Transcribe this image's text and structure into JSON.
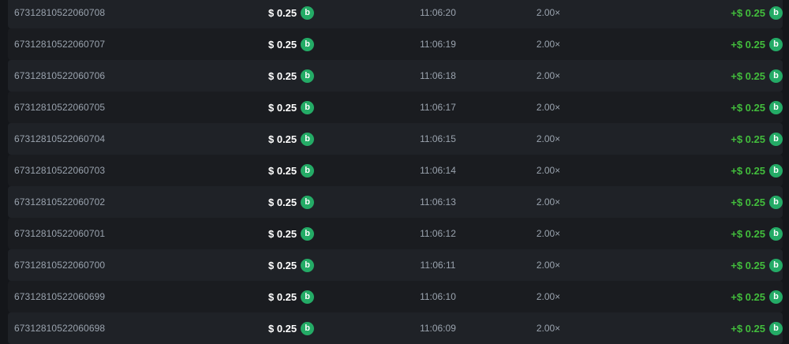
{
  "colors": {
    "page_background": "#14161a",
    "row_light": "#1f2227",
    "row_dark": "#1a1c20",
    "muted_text": "#9aa3ae",
    "amount_text": "#ffffff",
    "payout_green": "#42bd3c",
    "coin_green": "#24ab66"
  },
  "coin": {
    "glyph": "b",
    "name": "bcd-coin"
  },
  "table": {
    "rows": [
      {
        "id": "67312810522060708",
        "amount": "$ 0.25",
        "time": "11:06:20",
        "multiplier": "2.00×",
        "payout": "+$ 0.25"
      },
      {
        "id": "67312810522060707",
        "amount": "$ 0.25",
        "time": "11:06:19",
        "multiplier": "2.00×",
        "payout": "+$ 0.25"
      },
      {
        "id": "67312810522060706",
        "amount": "$ 0.25",
        "time": "11:06:18",
        "multiplier": "2.00×",
        "payout": "+$ 0.25"
      },
      {
        "id": "67312810522060705",
        "amount": "$ 0.25",
        "time": "11:06:17",
        "multiplier": "2.00×",
        "payout": "+$ 0.25"
      },
      {
        "id": "67312810522060704",
        "amount": "$ 0.25",
        "time": "11:06:15",
        "multiplier": "2.00×",
        "payout": "+$ 0.25"
      },
      {
        "id": "67312810522060703",
        "amount": "$ 0.25",
        "time": "11:06:14",
        "multiplier": "2.00×",
        "payout": "+$ 0.25"
      },
      {
        "id": "67312810522060702",
        "amount": "$ 0.25",
        "time": "11:06:13",
        "multiplier": "2.00×",
        "payout": "+$ 0.25"
      },
      {
        "id": "67312810522060701",
        "amount": "$ 0.25",
        "time": "11:06:12",
        "multiplier": "2.00×",
        "payout": "+$ 0.25"
      },
      {
        "id": "67312810522060700",
        "amount": "$ 0.25",
        "time": "11:06:11",
        "multiplier": "2.00×",
        "payout": "+$ 0.25"
      },
      {
        "id": "67312810522060699",
        "amount": "$ 0.25",
        "time": "11:06:10",
        "multiplier": "2.00×",
        "payout": "+$ 0.25"
      },
      {
        "id": "67312810522060698",
        "amount": "$ 0.25",
        "time": "11:06:09",
        "multiplier": "2.00×",
        "payout": "+$ 0.25"
      }
    ]
  }
}
